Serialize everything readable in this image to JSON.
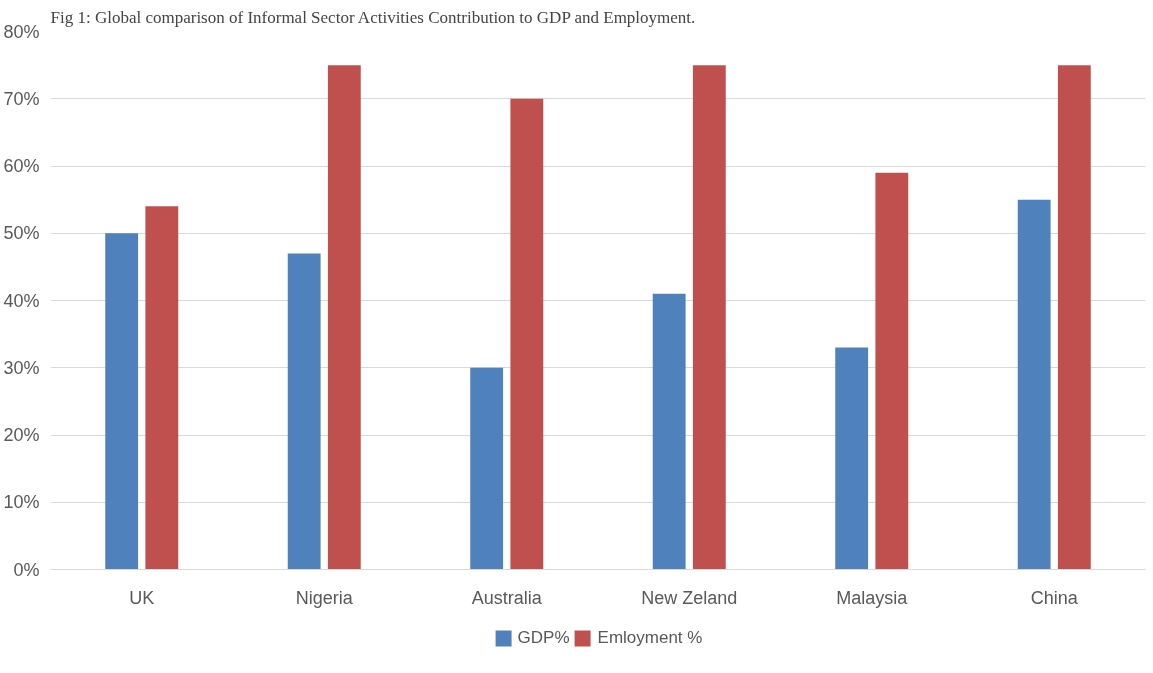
{
  "chart_data": {
    "type": "bar",
    "title": "Fig 1: Global comparison of Informal Sector Activities Contribution to GDP and Employment.",
    "categories": [
      "UK",
      "Nigeria",
      "Australia",
      "New Zeland",
      "Malaysia",
      "China"
    ],
    "series": [
      {
        "name": "GDP%",
        "color": "#4f81bd",
        "values": [
          50,
          47,
          30,
          41,
          33,
          55
        ]
      },
      {
        "name": "Emloyment %",
        "color": "#c0504d",
        "values": [
          54,
          75,
          70,
          75,
          59,
          75
        ]
      }
    ],
    "ylim": [
      0,
      80
    ],
    "yticks": [
      {
        "value": 0,
        "label": "0%"
      },
      {
        "value": 10,
        "label": "10%"
      },
      {
        "value": 20,
        "label": "20%"
      },
      {
        "value": 30,
        "label": "30%"
      },
      {
        "value": 40,
        "label": "40%"
      },
      {
        "value": 50,
        "label": "50%"
      },
      {
        "value": 60,
        "label": "60%"
      },
      {
        "value": 70,
        "label": "70%"
      },
      {
        "value": 80,
        "label": "80%"
      }
    ],
    "grid": "y",
    "legend": "bottom"
  }
}
